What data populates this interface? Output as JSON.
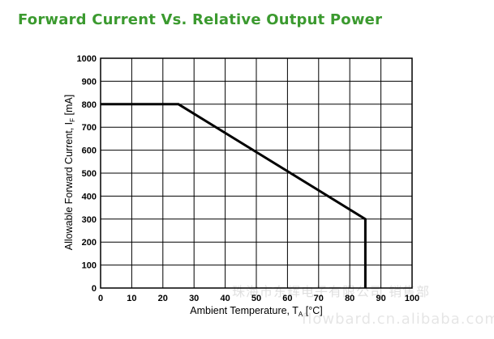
{
  "colors": {
    "title": "#3b9a2f",
    "line": "#000000",
    "grid": "#000000"
  },
  "chart_data": {
    "type": "line",
    "title": "Forward Current Vs. Relative Output Power",
    "xlabel": "Ambient Temperature, T",
    "xlabel_sub": "A",
    "xlabel_unit": " [°C]",
    "ylabel": "Allowable Forward Current, I",
    "ylabel_sub": "F",
    "ylabel_unit": " [mA]",
    "xlim": [
      0,
      100
    ],
    "ylim": [
      0,
      1000
    ],
    "xticks": [
      0,
      10,
      20,
      30,
      40,
      50,
      60,
      70,
      80,
      90,
      100
    ],
    "yticks": [
      0,
      100,
      200,
      300,
      400,
      500,
      600,
      700,
      800,
      900,
      1000
    ],
    "grid": true,
    "series": [
      {
        "x": [
          0,
          25,
          85,
          85
        ],
        "y": [
          800,
          800,
          300,
          0
        ]
      }
    ]
  },
  "watermark": {
    "text_cn": "珠海市东辉电子有限公司 销售部",
    "text_url": "flowbard.cn.alibaba.com"
  }
}
